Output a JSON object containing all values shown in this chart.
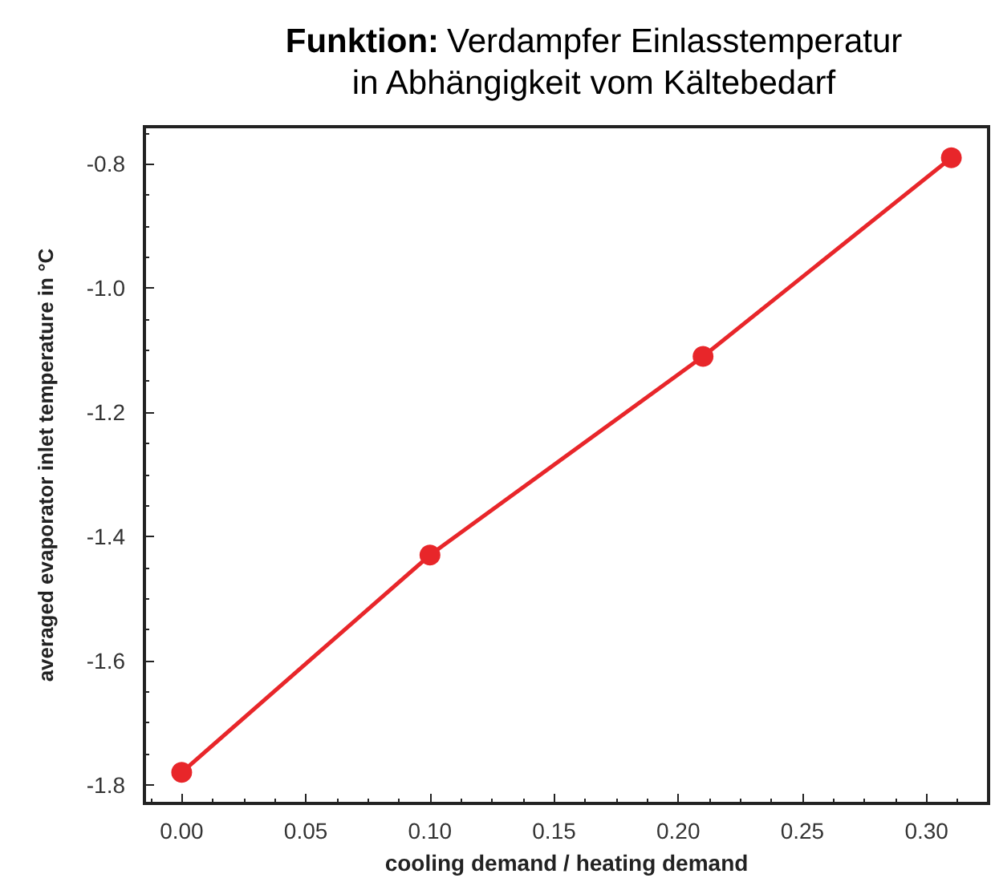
{
  "chart_data": {
    "type": "line",
    "title": "Funktion: Verdampfer Einlasstemperatur in Abhängigkeit vom Kältebedarf",
    "xlabel": "cooling demand / heating demand",
    "ylabel": "averaged evaporator inlet temperature in °C",
    "x": [
      0.0,
      0.1,
      0.21,
      0.31
    ],
    "series": [
      {
        "color": "#e8262a",
        "values": [
          -1.78,
          -1.43,
          -1.11,
          -0.79
        ]
      }
    ],
    "xlim": [
      -0.015,
      0.325
    ],
    "xticks": [
      {
        "value": 0,
        "label": "0.00"
      },
      0.05,
      {
        "value": 0.1,
        "label": "0.10"
      },
      0.15,
      {
        "value": 0.2,
        "label": "0.20"
      },
      0.25,
      {
        "value": 0.3,
        "label": "0.30"
      }
    ],
    "ylim": [
      -1.83,
      -0.74
    ],
    "yticks": [
      -1.8,
      -1.6,
      -1.4,
      -1.2,
      {
        "value": -1,
        "label": "-1.0"
      },
      -0.8
    ],
    "grid": false,
    "marker": "circle",
    "line_style": "solid"
  }
}
